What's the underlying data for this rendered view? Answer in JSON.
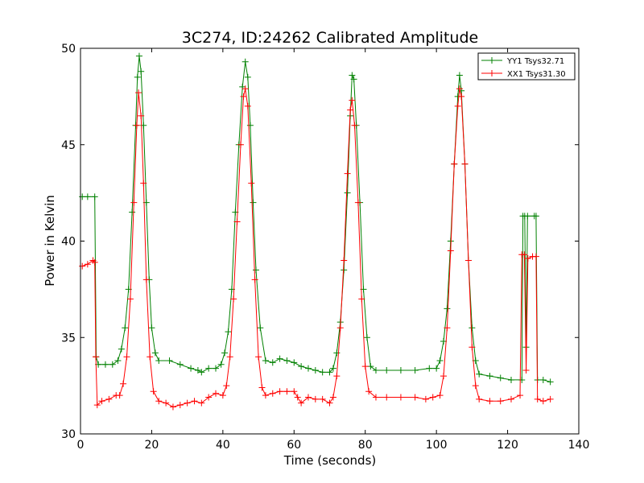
{
  "chart_data": {
    "type": "line",
    "title": "3C274, ID:24262 Calibrated Amplitude",
    "xlabel": "Time (seconds)",
    "ylabel": "Power in Kelvin",
    "xlim": [
      0,
      140
    ],
    "ylim": [
      30,
      50
    ],
    "xticks": [
      0,
      20,
      40,
      60,
      80,
      100,
      120,
      140
    ],
    "yticks": [
      30,
      35,
      40,
      45,
      50
    ],
    "grid": false,
    "legend_position": "top-right",
    "marker": "plus",
    "series": [
      {
        "name": "YY1 Tsys32.71",
        "color": "#008000",
        "points": [
          [
            0.5,
            42.3
          ],
          [
            2,
            42.3
          ],
          [
            4,
            42.3
          ],
          [
            4.4,
            34
          ],
          [
            5,
            33.6
          ],
          [
            7,
            33.6
          ],
          [
            9,
            33.6
          ],
          [
            10.5,
            33.8
          ],
          [
            11.5,
            34.4
          ],
          [
            12.5,
            35.5
          ],
          [
            13.5,
            37.5
          ],
          [
            14.5,
            41.5
          ],
          [
            15.5,
            46
          ],
          [
            16,
            48.5
          ],
          [
            16.5,
            49.6
          ],
          [
            17,
            48.8
          ],
          [
            17.7,
            46
          ],
          [
            18.5,
            42
          ],
          [
            19.3,
            38
          ],
          [
            20,
            35.5
          ],
          [
            21,
            34.2
          ],
          [
            22,
            33.8
          ],
          [
            25,
            33.8
          ],
          [
            28,
            33.6
          ],
          [
            31,
            33.4
          ],
          [
            33,
            33.3
          ],
          [
            34,
            33.2
          ],
          [
            36,
            33.4
          ],
          [
            38,
            33.4
          ],
          [
            39.5,
            33.6
          ],
          [
            40.5,
            34.2
          ],
          [
            41.5,
            35.3
          ],
          [
            42.5,
            37.5
          ],
          [
            43.5,
            41.5
          ],
          [
            44.5,
            45
          ],
          [
            45.5,
            48
          ],
          [
            46.3,
            49.3
          ],
          [
            47,
            48.5
          ],
          [
            47.7,
            46
          ],
          [
            48.5,
            42
          ],
          [
            49.3,
            38.5
          ],
          [
            50.5,
            35.5
          ],
          [
            52,
            33.8
          ],
          [
            54,
            33.7
          ],
          [
            56,
            33.9
          ],
          [
            58,
            33.8
          ],
          [
            60,
            33.7
          ],
          [
            62,
            33.5
          ],
          [
            64,
            33.4
          ],
          [
            66,
            33.3
          ],
          [
            68,
            33.2
          ],
          [
            70,
            33.2
          ],
          [
            71,
            33.4
          ],
          [
            72,
            34.2
          ],
          [
            73,
            35.8
          ],
          [
            74,
            38.5
          ],
          [
            75,
            42.5
          ],
          [
            75.8,
            46.5
          ],
          [
            76.3,
            48.6
          ],
          [
            76.8,
            48.4
          ],
          [
            77.5,
            46
          ],
          [
            78.5,
            42
          ],
          [
            79.5,
            37.5
          ],
          [
            80.5,
            35
          ],
          [
            81.5,
            33.5
          ],
          [
            83,
            33.3
          ],
          [
            86,
            33.3
          ],
          [
            90,
            33.3
          ],
          [
            94,
            33.3
          ],
          [
            98,
            33.4
          ],
          [
            100,
            33.4
          ],
          [
            101,
            33.8
          ],
          [
            102,
            34.8
          ],
          [
            103,
            36.5
          ],
          [
            104,
            40
          ],
          [
            105,
            44
          ],
          [
            106,
            47.5
          ],
          [
            106.5,
            48.6
          ],
          [
            107,
            47.8
          ],
          [
            108,
            44
          ],
          [
            109,
            39
          ],
          [
            110,
            35.5
          ],
          [
            111,
            33.8
          ],
          [
            112,
            33.1
          ],
          [
            115,
            33
          ],
          [
            118,
            32.9
          ],
          [
            121,
            32.8
          ],
          [
            124,
            32.8
          ],
          [
            124.3,
            41.3
          ],
          [
            124.8,
            41.3
          ],
          [
            125.2,
            34.5
          ],
          [
            125.6,
            41.3
          ],
          [
            127.5,
            41.3
          ],
          [
            128,
            41.3
          ],
          [
            128.4,
            32.8
          ],
          [
            130,
            32.8
          ],
          [
            132,
            32.7
          ]
        ]
      },
      {
        "name": "XX1 Tsys31.30",
        "color": "#ff0000",
        "points": [
          [
            0.5,
            38.7
          ],
          [
            2,
            38.8
          ],
          [
            3.5,
            39
          ],
          [
            4,
            38.9
          ],
          [
            4.3,
            34
          ],
          [
            4.7,
            31.5
          ],
          [
            6,
            31.7
          ],
          [
            8,
            31.8
          ],
          [
            10,
            32
          ],
          [
            11,
            32
          ],
          [
            12,
            32.6
          ],
          [
            13,
            34
          ],
          [
            14,
            37
          ],
          [
            15,
            42
          ],
          [
            15.8,
            46
          ],
          [
            16.3,
            47.7
          ],
          [
            17,
            46.5
          ],
          [
            17.7,
            43
          ],
          [
            18.5,
            38
          ],
          [
            19.5,
            34
          ],
          [
            20.5,
            32.2
          ],
          [
            22,
            31.7
          ],
          [
            24,
            31.6
          ],
          [
            26,
            31.4
          ],
          [
            28,
            31.5
          ],
          [
            30,
            31.6
          ],
          [
            32,
            31.7
          ],
          [
            34,
            31.6
          ],
          [
            36,
            31.9
          ],
          [
            38,
            32.1
          ],
          [
            40,
            32
          ],
          [
            41,
            32.5
          ],
          [
            42,
            34
          ],
          [
            43,
            37
          ],
          [
            44,
            41
          ],
          [
            45,
            45
          ],
          [
            45.8,
            47.5
          ],
          [
            46.3,
            47.9
          ],
          [
            47,
            47
          ],
          [
            48,
            43
          ],
          [
            49,
            38
          ],
          [
            50,
            34
          ],
          [
            51,
            32.4
          ],
          [
            52,
            32
          ],
          [
            54,
            32.1
          ],
          [
            56,
            32.2
          ],
          [
            58,
            32.2
          ],
          [
            60,
            32.2
          ],
          [
            61,
            31.9
          ],
          [
            62,
            31.6
          ],
          [
            64,
            31.9
          ],
          [
            66,
            31.8
          ],
          [
            68,
            31.8
          ],
          [
            70,
            31.6
          ],
          [
            71,
            31.9
          ],
          [
            72,
            33
          ],
          [
            73,
            35.5
          ],
          [
            74,
            39
          ],
          [
            75,
            43.5
          ],
          [
            75.8,
            46.8
          ],
          [
            76.3,
            47.3
          ],
          [
            77,
            46
          ],
          [
            78,
            42
          ],
          [
            79,
            37
          ],
          [
            80,
            33.5
          ],
          [
            81,
            32.2
          ],
          [
            83,
            31.9
          ],
          [
            86,
            31.9
          ],
          [
            90,
            31.9
          ],
          [
            94,
            31.9
          ],
          [
            97,
            31.8
          ],
          [
            99,
            31.9
          ],
          [
            101,
            32
          ],
          [
            102,
            33
          ],
          [
            103,
            35.5
          ],
          [
            104,
            39.5
          ],
          [
            105,
            44
          ],
          [
            106,
            47
          ],
          [
            106.5,
            47.9
          ],
          [
            107,
            47.5
          ],
          [
            108,
            44
          ],
          [
            109,
            39
          ],
          [
            110,
            34.5
          ],
          [
            111,
            32.5
          ],
          [
            112,
            31.8
          ],
          [
            115,
            31.7
          ],
          [
            118,
            31.7
          ],
          [
            121,
            31.8
          ],
          [
            123.5,
            32
          ],
          [
            124,
            39.3
          ],
          [
            124.7,
            39.3
          ],
          [
            125.2,
            33.3
          ],
          [
            125.7,
            39.1
          ],
          [
            127,
            39.2
          ],
          [
            128,
            39.2
          ],
          [
            128.4,
            31.8
          ],
          [
            130,
            31.7
          ],
          [
            132,
            31.8
          ]
        ]
      }
    ]
  }
}
